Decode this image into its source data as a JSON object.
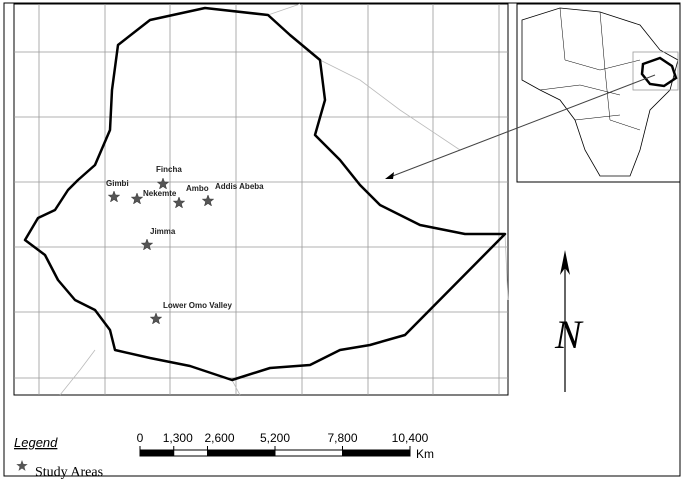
{
  "map": {
    "places": [
      "Fincha",
      "Gimbi",
      "Nekemte",
      "Ambo",
      "Addis Abeba",
      "Jimma",
      "Lower Omo Valley"
    ]
  },
  "legend": {
    "title": "Legend",
    "items": [
      "Study Areas"
    ]
  },
  "scale_bar": {
    "ticks": [
      0,
      {
        "value": 1300,
        "label": "1,300"
      },
      {
        "value": 2600,
        "label": "2,600"
      },
      {
        "value": 5200,
        "label": "5,200"
      },
      {
        "value": 7800,
        "label": "7,800"
      },
      {
        "value": 10400,
        "label": "10,400"
      }
    ],
    "unit": "Km"
  },
  "north_arrow": {
    "label": "N"
  }
}
